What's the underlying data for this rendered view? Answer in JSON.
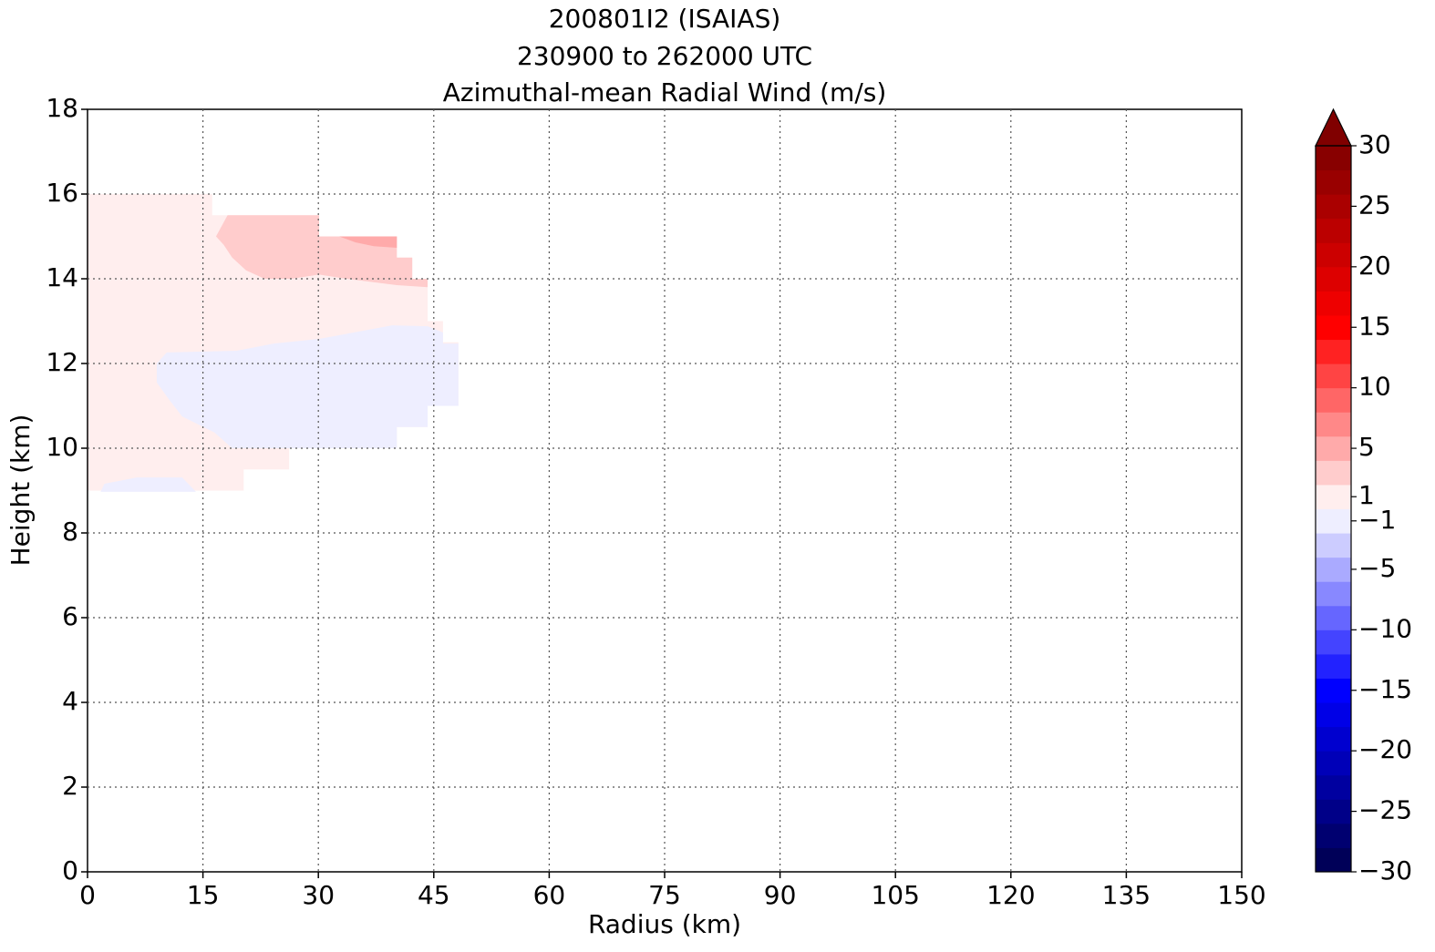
{
  "chart_data": {
    "type": "contourf",
    "title": [
      "200801I2 (ISAIAS)",
      "230900 to 262000 UTC",
      "Azimuthal-mean Radial Wind (m/s)"
    ],
    "xlabel": "Radius (km)",
    "ylabel": "Height (km)",
    "xlim": [
      0,
      150
    ],
    "xticks": [
      0,
      15,
      30,
      45,
      60,
      75,
      90,
      105,
      120,
      135,
      150
    ],
    "ylim": [
      0,
      18
    ],
    "yticks": [
      0,
      2,
      4,
      6,
      8,
      10,
      12,
      14,
      16,
      18
    ],
    "grid": true,
    "levels": [
      -30,
      -28,
      -26,
      -24,
      -22,
      -20,
      -18,
      -16,
      -14,
      -12,
      -10,
      -8,
      -6,
      -4,
      -2,
      0,
      2,
      4,
      6,
      8,
      10,
      12,
      14,
      16,
      18,
      20,
      22,
      24,
      26,
      28,
      30
    ],
    "colors": [
      "#000058",
      "#000070",
      "#000088",
      "#0000a0",
      "#0000b8",
      "#0000cf",
      "#0000e7",
      "#0000ff",
      "#2222ff",
      "#4444ff",
      "#6666ff",
      "#8888ff",
      "#aaaaff",
      "#ccccff",
      "#eeeeff",
      "#ffeeee",
      "#ffcccc",
      "#ffaaaa",
      "#ff8888",
      "#ff6666",
      "#ff4444",
      "#ff2222",
      "#ff0000",
      "#ee0000",
      "#dd0000",
      "#cc0000",
      "#bb0000",
      "#aa0000",
      "#990000",
      "#880000"
    ],
    "extend_color": "#800000",
    "colorbar_lim": [
      -30,
      30
    ],
    "colorbar_ticks": [
      {
        "value": -30,
        "label": "−30"
      },
      {
        "value": -25,
        "label": "−25"
      },
      {
        "value": -20,
        "label": "−20"
      },
      {
        "value": -15,
        "label": "−15"
      },
      {
        "value": -10,
        "label": "−10"
      },
      {
        "value": -5,
        "label": "−5"
      },
      {
        "value": -1,
        "label": "−1"
      },
      1,
      5,
      10,
      15,
      20,
      25,
      30
    ],
    "regions": [
      {
        "range": [
          0,
          2
        ],
        "x": [
          0,
          16.2,
          16.2,
          30,
          30,
          40.2,
          40.2,
          42.2,
          42.2,
          44.2,
          44.2,
          46.2,
          46.2,
          48.2,
          48.2,
          44.2,
          44.2,
          40.2,
          40.2,
          26.2,
          26.2,
          20.3,
          20.3,
          0
        ],
        "y": [
          16,
          16,
          15.5,
          15.5,
          15,
          15,
          14.5,
          14.5,
          14,
          14,
          13,
          13,
          12.5,
          12.5,
          11,
          11,
          10.5,
          10.5,
          10,
          10,
          9.5,
          9.5,
          9,
          9
        ]
      },
      {
        "range": [
          2,
          4
        ],
        "x": [
          18.2,
          30.1,
          30.1,
          40.2,
          40.2,
          42.2,
          42.2,
          44.2,
          44.2,
          40.2,
          33.6,
          30.1,
          26.5,
          23,
          20.6,
          18.8,
          17.7,
          16.7
        ],
        "y": [
          15.5,
          15.5,
          15,
          15,
          14.5,
          14.5,
          14,
          14,
          13.8,
          13.85,
          14,
          14.1,
          14,
          14,
          14.2,
          14.5,
          14.8,
          15
        ]
      },
      {
        "range": [
          4,
          6
        ],
        "x": [
          32.7,
          40.2,
          40.2,
          37.2,
          34.8
        ],
        "y": [
          15,
          15,
          14.73,
          14.77,
          14.86
        ]
      },
      {
        "range": [
          -2,
          0
        ],
        "x": [
          10.3,
          19.4,
          24.2,
          30.1,
          39.6,
          44.2,
          46.2,
          46.2,
          48.2,
          48.2,
          44.2,
          44.2,
          40.2,
          40.2,
          18.8,
          16.5,
          12.3,
          10.8,
          9,
          9
        ],
        "y": [
          12.26,
          12.3,
          12.47,
          12.58,
          12.9,
          12.88,
          12.73,
          12.47,
          12.47,
          11,
          11,
          10.5,
          10.5,
          10,
          10,
          10.37,
          10.75,
          11.1,
          11.55,
          12
        ]
      },
      {
        "range": [
          -2,
          0
        ],
        "x": [
          1.7,
          2.2,
          6.4,
          12.3,
          14.1
        ],
        "y": [
          8.97,
          9.16,
          9.31,
          9.31,
          8.97
        ]
      }
    ]
  }
}
